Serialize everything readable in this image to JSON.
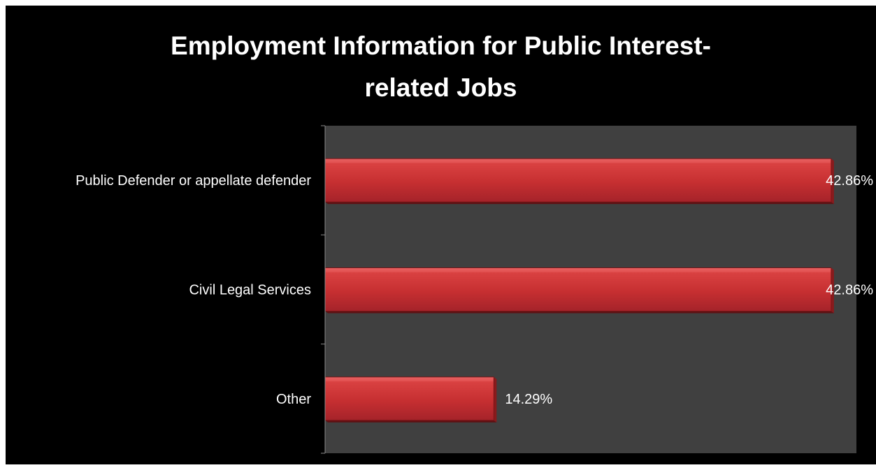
{
  "chart_data": {
    "type": "bar",
    "orientation": "horizontal",
    "title_lines": [
      "Employment Information for Public Interest-",
      "related Jobs"
    ],
    "categories": [
      "Public Defender or appellate defender",
      "Civil Legal Services",
      "Other"
    ],
    "values": [
      42.86,
      42.86,
      14.29
    ],
    "value_labels": [
      "42.86%",
      "42.86%",
      "14.29%"
    ],
    "xlim": [
      0,
      45
    ],
    "xlabel": "",
    "ylabel": "",
    "grid": false,
    "legend": "none"
  },
  "colors": {
    "background": "#000000",
    "plot_area": "#404040",
    "bar_fill": "#c0292b",
    "bar_highlight": "#e85a5a",
    "bar_shadow": "#8a1a1c",
    "text": "#ffffff",
    "axis": "#8c8c8c"
  }
}
